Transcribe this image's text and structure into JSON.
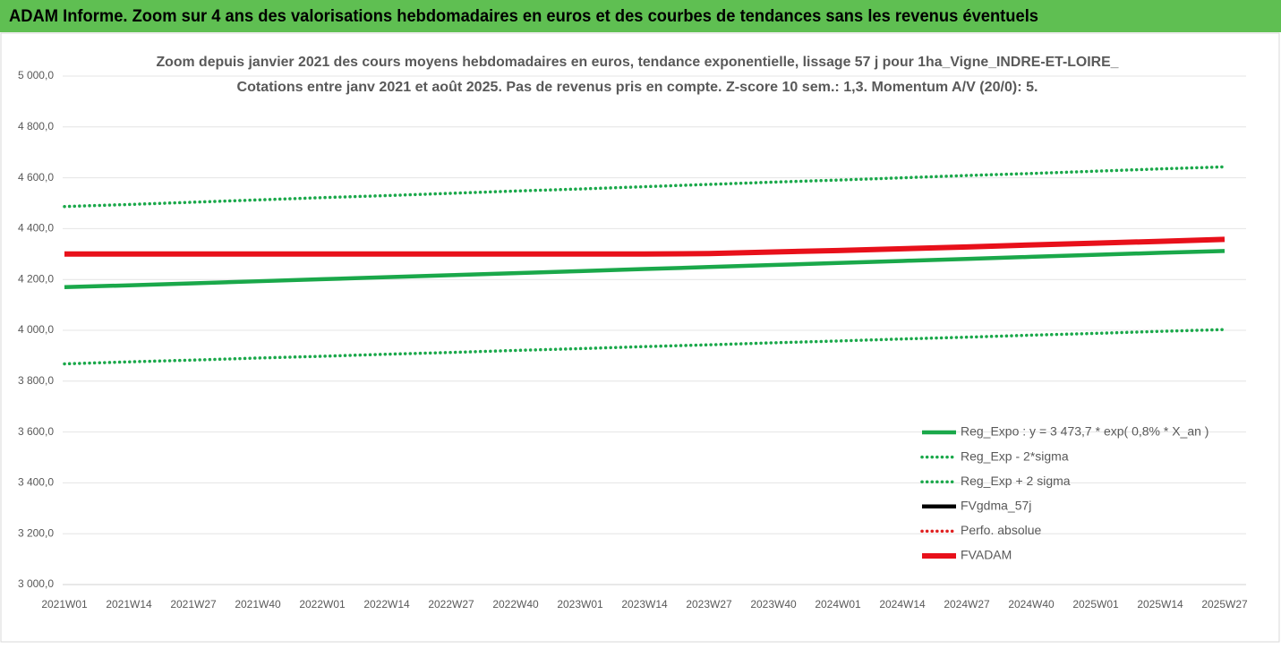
{
  "header": {
    "title": "ADAM Informe. Zoom sur 4 ans des valorisations hebdomadaires en euros et des courbes de tendances sans les revenus éventuels"
  },
  "chart_data": {
    "type": "line",
    "title": "Zoom depuis janvier 2021 des cours moyens hebdomadaires en euros, tendance exponentielle, lissage 57 j pour 1ha_Vigne_INDRE-ET-LOIRE_",
    "subtitle": "Cotations entre janv 2021 et août 2025.  Pas de revenus pris en compte. Z-score 10 sem.: 1,3. Momentum A/V (20/0): 5.",
    "categories": [
      "2021W01",
      "2021W14",
      "2021W27",
      "2021W40",
      "2022W01",
      "2022W14",
      "2022W27",
      "2022W40",
      "2023W01",
      "2023W14",
      "2023W27",
      "2023W40",
      "2024W01",
      "2024W14",
      "2024W27",
      "2024W40",
      "2025W01",
      "2025W14",
      "2025W27"
    ],
    "ylim": [
      3000,
      5000
    ],
    "yticks": [
      {
        "value": 3000,
        "label": "3 000,0"
      },
      {
        "value": 3200,
        "label": "3 200,0"
      },
      {
        "value": 3400,
        "label": "3 400,0"
      },
      {
        "value": 3600,
        "label": "3 600,0"
      },
      {
        "value": 3800,
        "label": "3 800,0"
      },
      {
        "value": 4000,
        "label": "4 000,0"
      },
      {
        "value": 4200,
        "label": "4 200,0"
      },
      {
        "value": 4400,
        "label": "4 400,0"
      },
      {
        "value": 4600,
        "label": "4 600,0"
      },
      {
        "value": 4800,
        "label": "4 800,0"
      },
      {
        "value": 5000,
        "label": "5 000,0"
      }
    ],
    "grid": true,
    "legend": "bottom-right",
    "series": [
      {
        "name": "Reg_Expo : y = 3 473,7 * exp( 0,8% *  X_an )",
        "color": "#1aa84a",
        "style": "solid",
        "values": [
          4170,
          4177,
          4185,
          4193,
          4201,
          4209,
          4217,
          4225,
          4233,
          4241,
          4249,
          4257,
          4265,
          4273,
          4281,
          4289,
          4297,
          4305,
          4312
        ]
      },
      {
        "name": "Reg_Exp - 2*sigma",
        "color": "#1aa84a",
        "style": "dotted",
        "values": [
          3868,
          3876,
          3883,
          3891,
          3898,
          3906,
          3913,
          3921,
          3928,
          3936,
          3943,
          3951,
          3958,
          3966,
          3973,
          3981,
          3988,
          3996,
          4003
        ]
      },
      {
        "name": "Reg_Exp + 2 sigma",
        "color": "#1aa84a",
        "style": "dotted",
        "values": [
          4487,
          4495,
          4504,
          4513,
          4522,
          4530,
          4539,
          4548,
          4556,
          4565,
          4574,
          4583,
          4591,
          4600,
          4609,
          4617,
          4626,
          4635,
          4643
        ]
      },
      {
        "name": "FVgdma_57j",
        "color": "#000000",
        "style": "solid"
      },
      {
        "name": "Perfo. absolue",
        "color": "#e02020",
        "style": "dotted"
      },
      {
        "name": "FVADAM",
        "color": "#e8101a",
        "style": "thick",
        "values": [
          4300,
          4300,
          4300,
          4300,
          4300,
          4300,
          4300,
          4300,
          4300,
          4300,
          4302,
          4308,
          4314,
          4321,
          4328,
          4336,
          4343,
          4350,
          4358
        ]
      }
    ]
  }
}
